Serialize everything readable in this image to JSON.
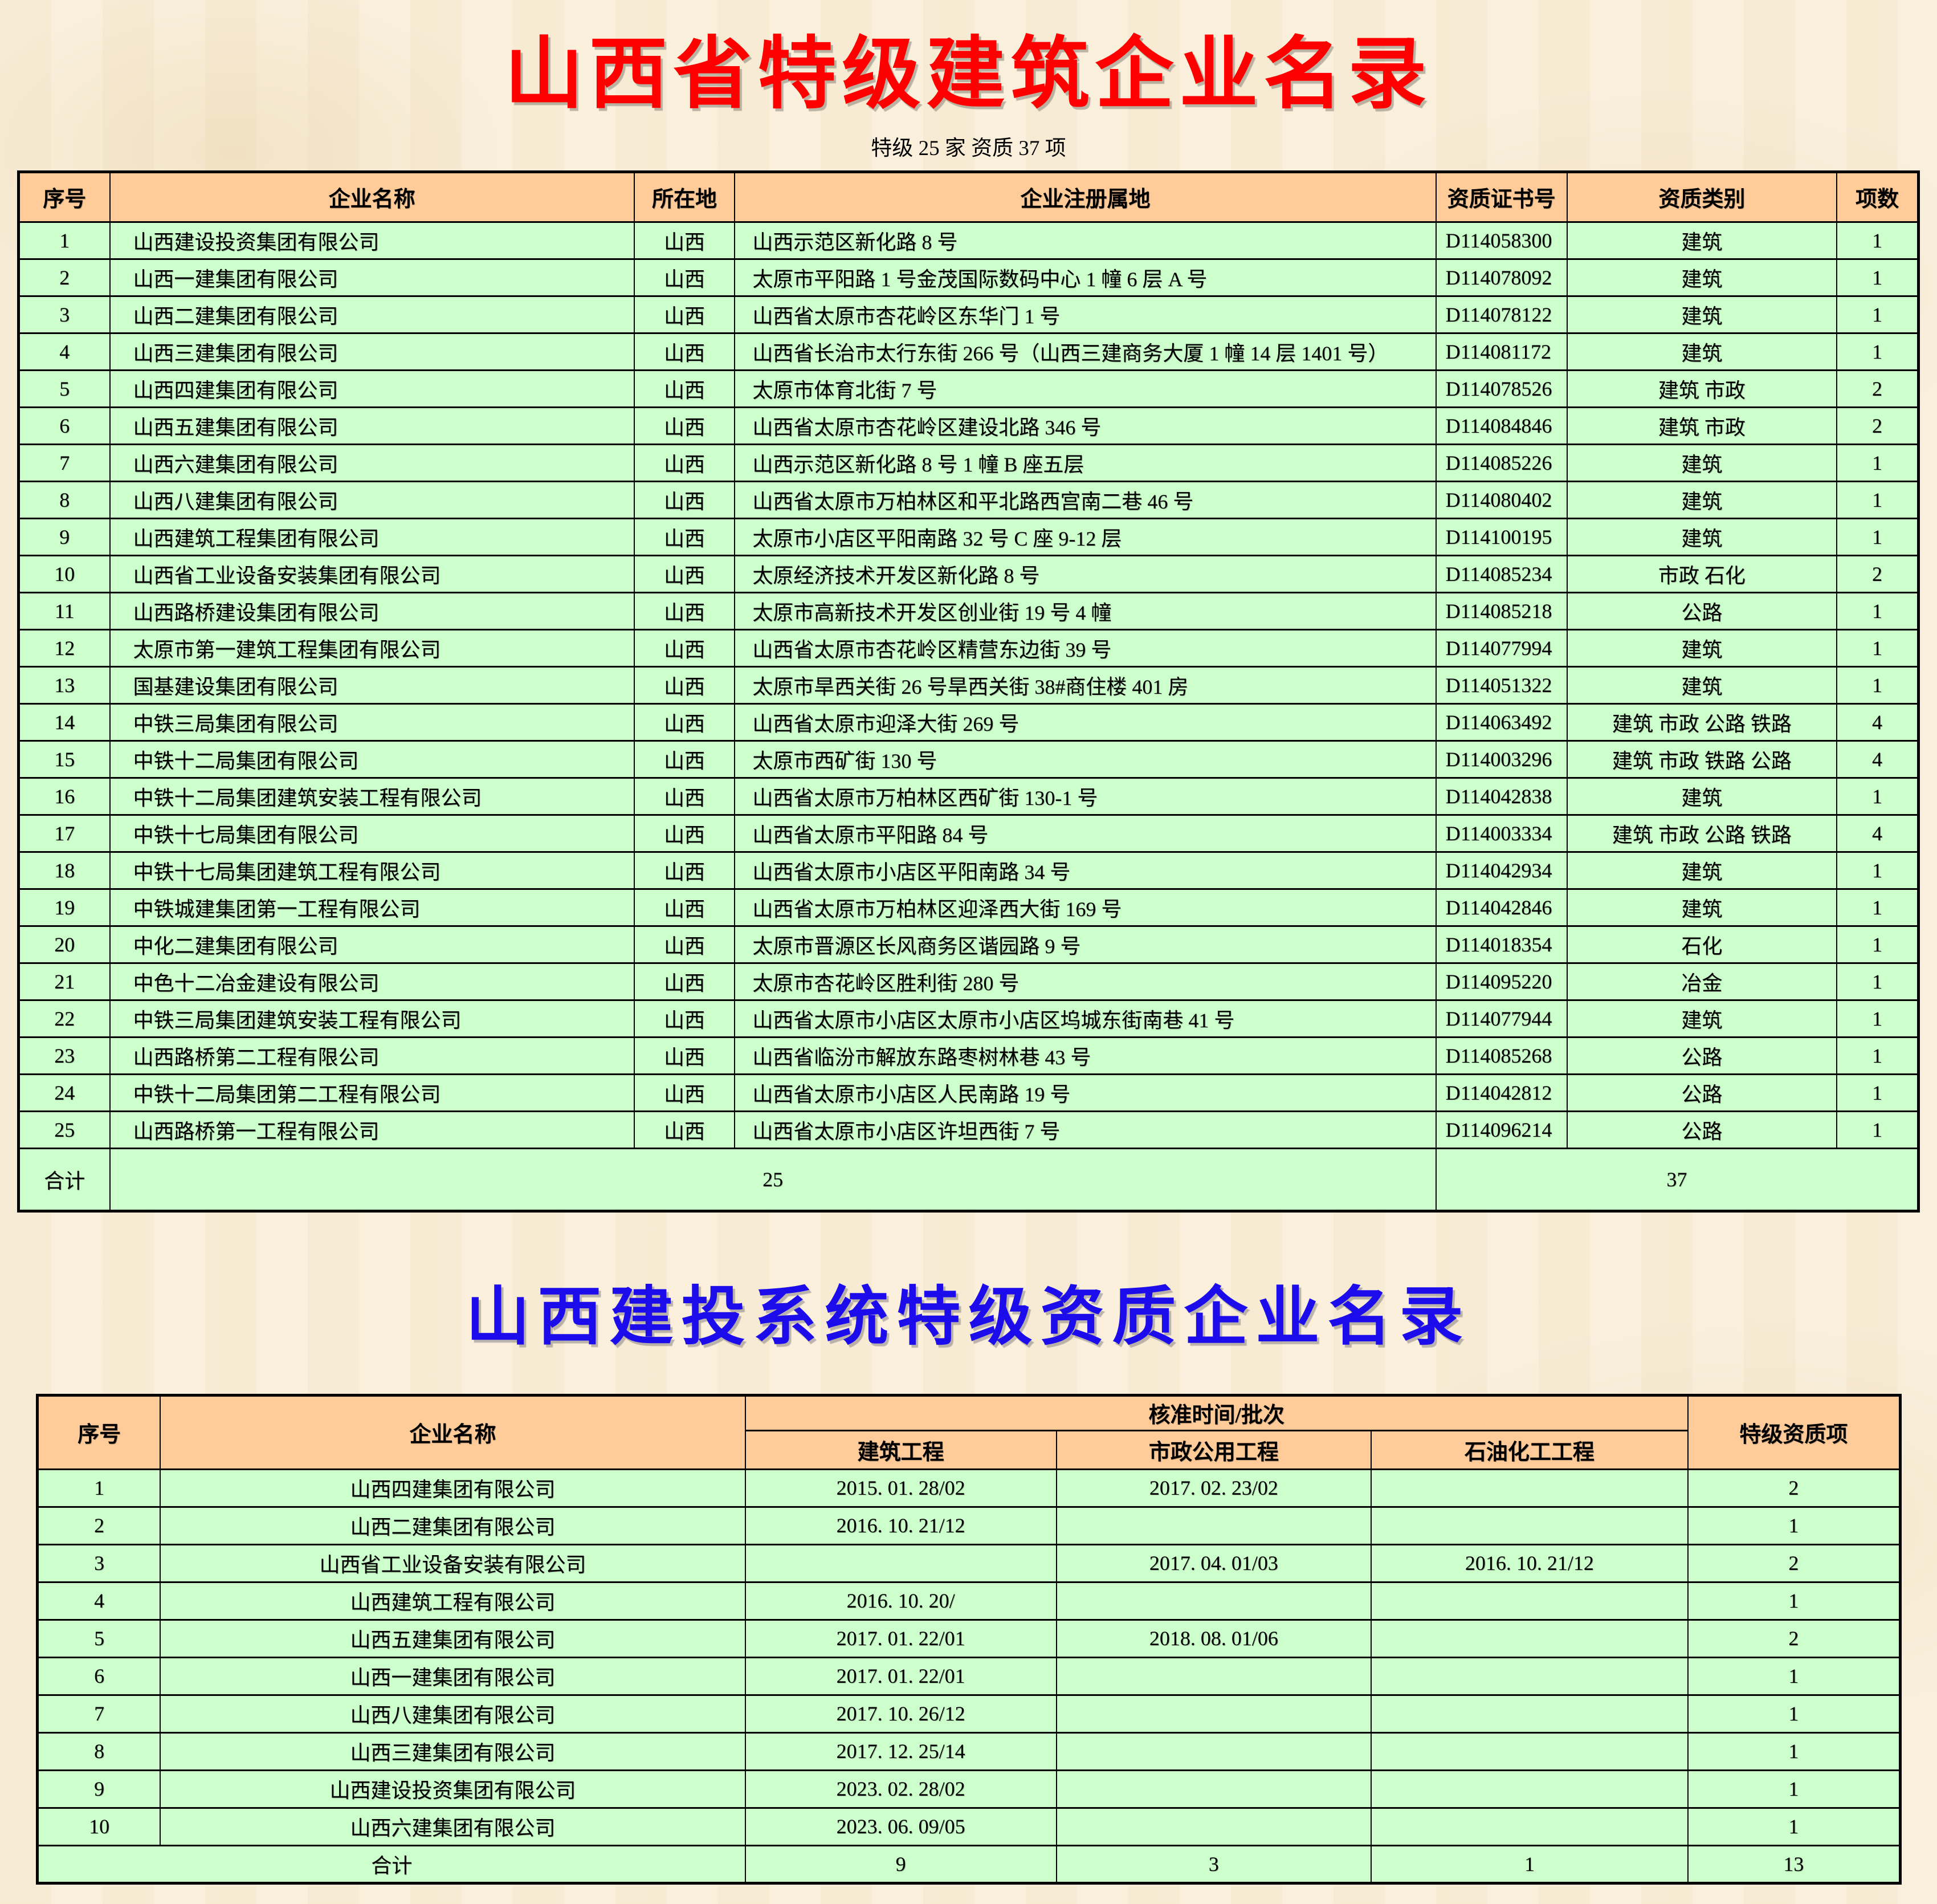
{
  "colors": {
    "page_background": "#F9EEDA",
    "header_cell_bg": "#FFCC99",
    "data_cell_bg": "#CCFFCC",
    "border": "#000000",
    "title1_color": "#FF0000",
    "title2_color": "#1C0CEC"
  },
  "directory1": {
    "title": "山西省特级建筑企业名录",
    "subtitle": "特级 25 家 资质 37 项",
    "columns": [
      "序号",
      "企业名称",
      "所在地",
      "企业注册属地",
      "资质证书号",
      "资质类别",
      "项数"
    ],
    "column_keys": [
      "no",
      "name",
      "location",
      "address",
      "cert-no",
      "category",
      "count"
    ],
    "rows": [
      [
        "1",
        "山西建设投资集团有限公司",
        "山西",
        "山西示范区新化路 8 号",
        "D114058300",
        "建筑",
        "1"
      ],
      [
        "2",
        "山西一建集团有限公司",
        "山西",
        "太原市平阳路 1 号金茂国际数码中心 1 幢 6 层 A 号",
        "D114078092",
        "建筑",
        "1"
      ],
      [
        "3",
        "山西二建集团有限公司",
        "山西",
        "山西省太原市杏花岭区东华门 1 号",
        "D114078122",
        "建筑",
        "1"
      ],
      [
        "4",
        "山西三建集团有限公司",
        "山西",
        "山西省长治市太行东街 266 号（山西三建商务大厦 1 幢 14 层 1401 号）",
        "D114081172",
        "建筑",
        "1"
      ],
      [
        "5",
        "山西四建集团有限公司",
        "山西",
        "太原市体育北街 7 号",
        "D114078526",
        "建筑 市政",
        "2"
      ],
      [
        "6",
        "山西五建集团有限公司",
        "山西",
        "山西省太原市杏花岭区建设北路 346 号",
        "D114084846",
        "建筑 市政",
        "2"
      ],
      [
        "7",
        "山西六建集团有限公司",
        "山西",
        "山西示范区新化路 8 号 1 幢 B 座五层",
        "D114085226",
        "建筑",
        "1"
      ],
      [
        "8",
        "山西八建集团有限公司",
        "山西",
        "山西省太原市万柏林区和平北路西宫南二巷 46 号",
        "D114080402",
        "建筑",
        "1"
      ],
      [
        "9",
        "山西建筑工程集团有限公司",
        "山西",
        "太原市小店区平阳南路 32 号 C 座 9-12 层",
        "D114100195",
        "建筑",
        "1"
      ],
      [
        "10",
        "山西省工业设备安装集团有限公司",
        "山西",
        "太原经济技术开发区新化路 8 号",
        "D114085234",
        "市政 石化",
        "2"
      ],
      [
        "11",
        "山西路桥建设集团有限公司",
        "山西",
        "太原市高新技术开发区创业街 19 号 4 幢",
        "D114085218",
        "公路",
        "1"
      ],
      [
        "12",
        "太原市第一建筑工程集团有限公司",
        "山西",
        "山西省太原市杏花岭区精营东边街 39 号",
        "D114077994",
        "建筑",
        "1"
      ],
      [
        "13",
        "国基建设集团有限公司",
        "山西",
        "太原市旱西关街 26 号旱西关街 38#商住楼 401 房",
        "D114051322",
        "建筑",
        "1"
      ],
      [
        "14",
        "中铁三局集团有限公司",
        "山西",
        "山西省太原市迎泽大街 269 号",
        "D114063492",
        "建筑 市政 公路 铁路",
        "4"
      ],
      [
        "15",
        "中铁十二局集团有限公司",
        "山西",
        "太原市西矿街 130 号",
        "D114003296",
        "建筑 市政 铁路 公路",
        "4"
      ],
      [
        "16",
        "中铁十二局集团建筑安装工程有限公司",
        "山西",
        "山西省太原市万柏林区西矿街 130-1 号",
        "D114042838",
        "建筑",
        "1"
      ],
      [
        "17",
        "中铁十七局集团有限公司",
        "山西",
        "山西省太原市平阳路 84 号",
        "D114003334",
        "建筑 市政 公路 铁路",
        "4"
      ],
      [
        "18",
        "中铁十七局集团建筑工程有限公司",
        "山西",
        "山西省太原市小店区平阳南路 34 号",
        "D114042934",
        "建筑",
        "1"
      ],
      [
        "19",
        "中铁城建集团第一工程有限公司",
        "山西",
        "山西省太原市万柏林区迎泽西大街 169 号",
        "D114042846",
        "建筑",
        "1"
      ],
      [
        "20",
        "中化二建集团有限公司",
        "山西",
        "太原市晋源区长风商务区谐园路 9 号",
        "D114018354",
        "石化",
        "1"
      ],
      [
        "21",
        "中色十二冶金建设有限公司",
        "山西",
        "太原市杏花岭区胜利街 280 号",
        "D114095220",
        "冶金",
        "1"
      ],
      [
        "22",
        "中铁三局集团建筑安装工程有限公司",
        "山西",
        "山西省太原市小店区太原市小店区坞城东街南巷 41 号",
        "D114077944",
        "建筑",
        "1"
      ],
      [
        "23",
        "山西路桥第二工程有限公司",
        "山西",
        "山西省临汾市解放东路枣树林巷 43 号",
        "D114085268",
        "公路",
        "1"
      ],
      [
        "24",
        "中铁十二局集团第二工程有限公司",
        "山西",
        "山西省太原市小店区人民南路 19 号",
        "D114042812",
        "公路",
        "1"
      ],
      [
        "25",
        "山西路桥第一工程有限公司",
        "山西",
        "山西省太原市小店区许坦西街 7 号",
        "D114096214",
        "公路",
        "1"
      ]
    ],
    "total": {
      "label": "合计",
      "companies": "25",
      "items": "37"
    }
  },
  "directory2": {
    "title": "山西建投系统特级资质企业名录",
    "header": {
      "no": "序号",
      "name": "企业名称",
      "group": "核准时间/批次",
      "sub": [
        "建筑工程",
        "市政公用工程",
        "石油化工工程"
      ],
      "grade": "特级资质项"
    },
    "column_keys": [
      "no",
      "name",
      "construction-date",
      "municipal-date",
      "petrochemical-date",
      "grade-count"
    ],
    "rows": [
      [
        "1",
        "山西四建集团有限公司",
        "2015. 01. 28/02",
        "2017. 02. 23/02",
        "",
        "2"
      ],
      [
        "2",
        "山西二建集团有限公司",
        "2016. 10. 21/12",
        "",
        "",
        "1"
      ],
      [
        "3",
        "山西省工业设备安装有限公司",
        "",
        "2017. 04. 01/03",
        "2016. 10. 21/12",
        "2"
      ],
      [
        "4",
        "山西建筑工程有限公司",
        "2016. 10. 20/",
        "",
        "",
        "1"
      ],
      [
        "5",
        "山西五建集团有限公司",
        "2017. 01. 22/01",
        "2018. 08. 01/06",
        "",
        "2"
      ],
      [
        "6",
        "山西一建集团有限公司",
        "2017. 01. 22/01",
        "",
        "",
        "1"
      ],
      [
        "7",
        "山西八建集团有限公司",
        "2017. 10. 26/12",
        "",
        "",
        "1"
      ],
      [
        "8",
        "山西三建集团有限公司",
        "2017. 12. 25/14",
        "",
        "",
        "1"
      ],
      [
        "9",
        "山西建设投资集团有限公司",
        "2023. 02. 28/02",
        "",
        "",
        "1"
      ],
      [
        "10",
        "山西六建集团有限公司",
        "2023. 06. 09/05",
        "",
        "",
        "1"
      ]
    ],
    "total": {
      "label": "合计",
      "values": [
        "9",
        "3",
        "1",
        "13"
      ]
    }
  }
}
